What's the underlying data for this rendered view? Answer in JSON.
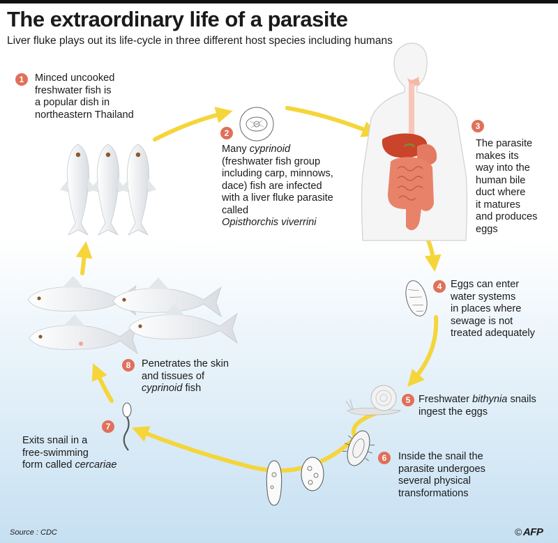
{
  "title": "The extraordinary life of a parasite",
  "subtitle": "Liver fluke plays out its life-cycle in three different host species including humans",
  "colors": {
    "arrow": "#f5d53a",
    "badge": "#e0705a",
    "water_top": "#ffffff",
    "water_bottom": "#c6e0f2",
    "organ": "#e06a4a"
  },
  "steps": [
    {
      "number": "1",
      "lines": [
        "Minced uncooked",
        "freshwater fish is",
        "a popular dish in",
        "northeastern Thailand"
      ]
    },
    {
      "number": "2",
      "lines_pre": [
        "Many"
      ],
      "italic_first": "cyprinoid",
      "lines": [
        "(freshwater fish group",
        "including carp, minnows,",
        "dace) fish are infected",
        "with a liver fluke parasite",
        "called"
      ],
      "italic_last": "Opisthorchis viverrini"
    },
    {
      "number": "3",
      "lines": [
        "The parasite",
        "makes its",
        "way into the",
        "human bile",
        "duct where",
        "it matures",
        "and produces",
        "eggs"
      ]
    },
    {
      "number": "4",
      "lines": [
        "Eggs can enter",
        "water systems",
        "in places where",
        "sewage is not",
        "treated adequately"
      ]
    },
    {
      "number": "5",
      "line1_pre": "Freshwater",
      "line1_italic": "bithynia",
      "line1_post": "snails",
      "line2": "ingest the eggs"
    },
    {
      "number": "6",
      "lines": [
        "Inside the snail the",
        "parasite undergoes",
        "several physical",
        "transformations"
      ]
    },
    {
      "number": "7",
      "lines": [
        "Exits snail in a",
        "free-swimming"
      ],
      "line3_pre": "form called",
      "line3_italic": "cercariae"
    },
    {
      "number": "8",
      "lines": [
        "Penetrates the skin",
        "and tissues of"
      ],
      "line3_italic": "cyprinoid",
      "line3_post": "fish"
    }
  ],
  "source": "Source : CDC",
  "logo": {
    "copyright": "©",
    "name": "AFP"
  }
}
